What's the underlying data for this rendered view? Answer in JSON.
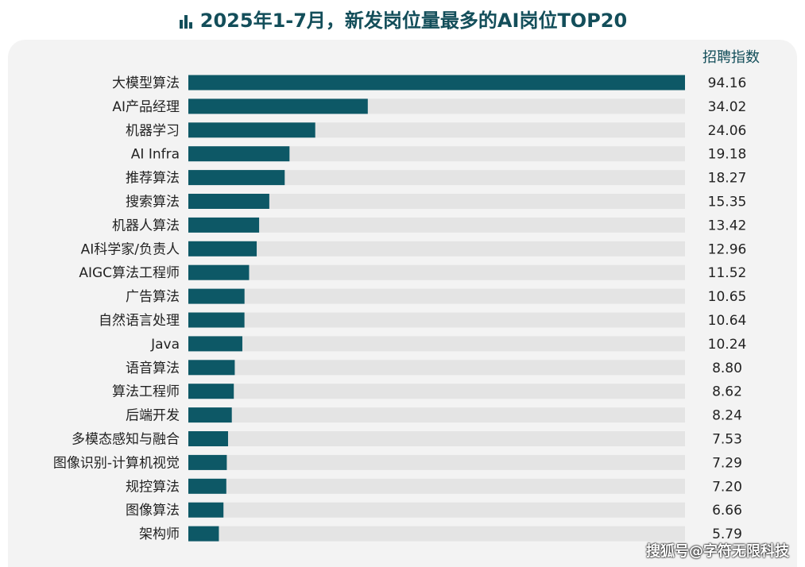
{
  "chart_data": {
    "type": "bar",
    "orientation": "horizontal",
    "title": "2025年1-7月，新发岗位量最多的AI岗位TOP20",
    "value_header": "招聘指数",
    "categories": [
      "大模型算法",
      "AI产品经理",
      "机器学习",
      "AI Infra",
      "推荐算法",
      "搜索算法",
      "机器人算法",
      "AI科学家/负责人",
      "AIGC算法工程师",
      "广告算法",
      "自然语言处理",
      "Java",
      "语音算法",
      "算法工程师",
      "后端开发",
      "多模态感知与融合",
      "图像识别-计算机视觉",
      "规控算法",
      "图像算法",
      "架构师"
    ],
    "values": [
      94.16,
      34.02,
      24.06,
      19.18,
      18.27,
      15.35,
      13.42,
      12.96,
      11.52,
      10.65,
      10.64,
      10.24,
      8.8,
      8.62,
      8.24,
      7.53,
      7.29,
      7.2,
      6.66,
      5.79
    ],
    "value_labels": [
      "94.16",
      "34.02",
      "24.06",
      "19.18",
      "18.27",
      "15.35",
      "13.42",
      "12.96",
      "11.52",
      "10.65",
      "10.64",
      "10.24",
      "8.80",
      "8.62",
      "8.24",
      "7.53",
      "7.29",
      "7.20",
      "6.66",
      "5.79"
    ],
    "xlim": [
      0,
      94.16
    ],
    "colors": {
      "bar": "#0d5866",
      "track": "#e4e4e4",
      "text": "#222222"
    }
  },
  "watermark": "搜狐号@字符无限科技"
}
